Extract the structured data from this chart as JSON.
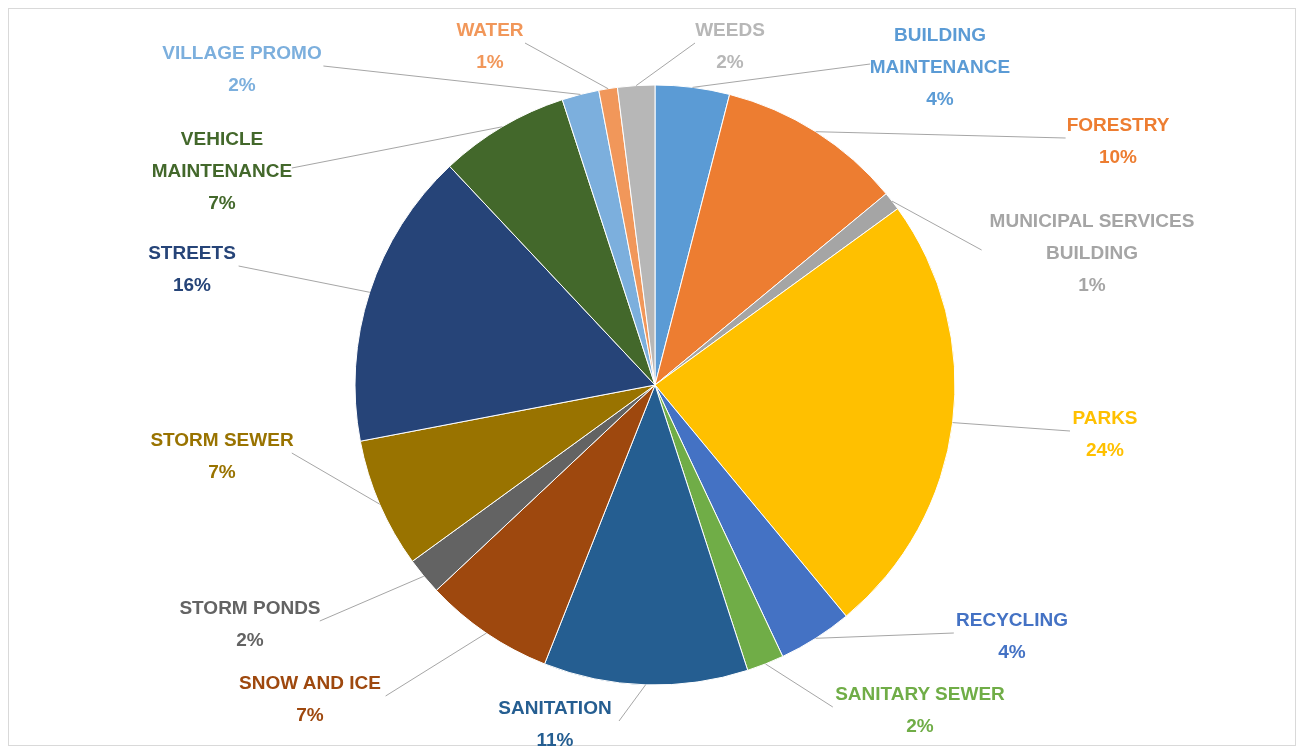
{
  "chart_data": {
    "type": "pie",
    "categories": [
      "BUILDING MAINTENANCE",
      "FORESTRY",
      "MUNICIPAL SERVICES BUILDING",
      "PARKS",
      "RECYCLING",
      "SANITARY SEWER",
      "SANITATION",
      "SNOW AND ICE",
      "STORM PONDS",
      "STORM SEWER",
      "STREETS",
      "VEHICLE MAINTENANCE",
      "VILLAGE PROMO",
      "WATER",
      "WEEDS"
    ],
    "values": [
      4,
      10,
      1,
      24,
      4,
      2,
      11,
      7,
      2,
      7,
      16,
      7,
      2,
      1,
      2
    ],
    "value_labels": [
      "4%",
      "10%",
      "1%",
      "24%",
      "4%",
      "2%",
      "11%",
      "7%",
      "2%",
      "7%",
      "16%",
      "7%",
      "2%",
      "1%",
      "2%"
    ],
    "colors": [
      "#5b9bd5",
      "#ed7d31",
      "#a5a5a5",
      "#ffc000",
      "#4472c4",
      "#70ad47",
      "#255e91",
      "#9e480e",
      "#636363",
      "#997300",
      "#264478",
      "#43682b",
      "#7cafdd",
      "#f1975a",
      "#b7b7b7"
    ]
  }
}
